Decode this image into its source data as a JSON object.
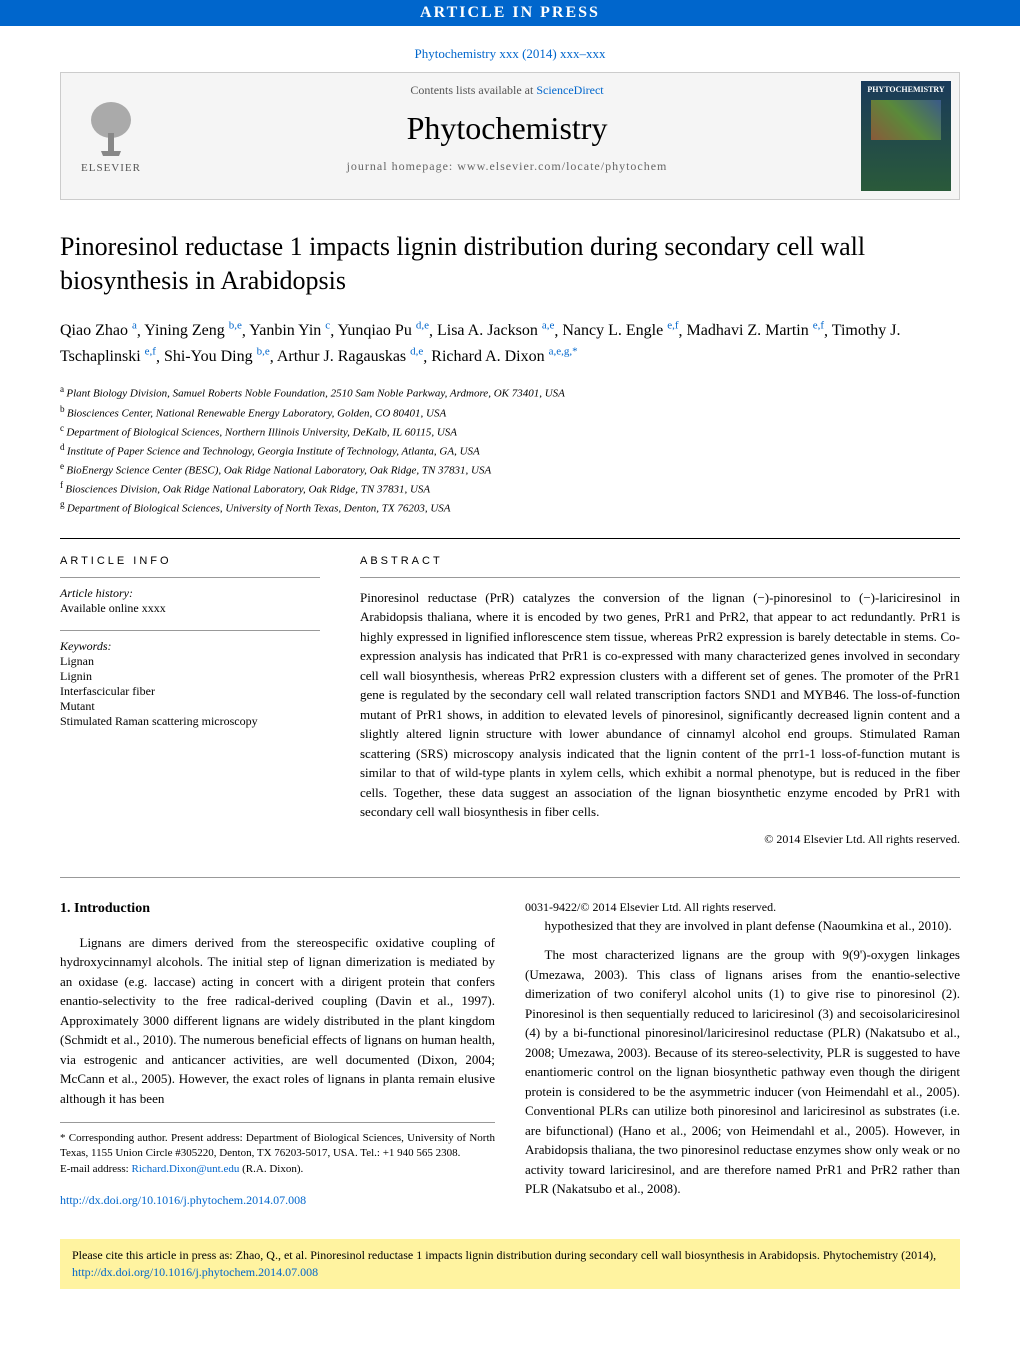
{
  "banner": {
    "text": "ARTICLE IN PRESS"
  },
  "citation_link": "Phytochemistry xxx (2014) xxx–xxx",
  "header": {
    "contents_prefix": "Contents lists available at ",
    "contents_link": "ScienceDirect",
    "journal_title": "Phytochemistry",
    "homepage_line": "journal homepage: www.elsevier.com/locate/phytochem",
    "publisher_name": "ELSEVIER",
    "cover_label": "PHYTOCHEMISTRY"
  },
  "article_title": "Pinoresinol reductase 1 impacts lignin distribution during secondary cell wall biosynthesis in Arabidopsis",
  "authors_line": "Qiao Zhao a, Yining Zeng b,e, Yanbin Yin c, Yunqiao Pu d,e, Lisa A. Jackson a,e, Nancy L. Engle e,f, Madhavi Z. Martin e,f, Timothy J. Tschaplinski e,f, Shi-You Ding b,e, Arthur J. Ragauskas d,e, Richard A. Dixon a,e,g,*",
  "authors": [
    {
      "name": "Qiao Zhao",
      "sup": "a"
    },
    {
      "name": "Yining Zeng",
      "sup": "b,e"
    },
    {
      "name": "Yanbin Yin",
      "sup": "c"
    },
    {
      "name": "Yunqiao Pu",
      "sup": "d,e"
    },
    {
      "name": "Lisa A. Jackson",
      "sup": "a,e"
    },
    {
      "name": "Nancy L. Engle",
      "sup": "e,f"
    },
    {
      "name": "Madhavi Z. Martin",
      "sup": "e,f"
    },
    {
      "name": "Timothy J. Tschaplinski",
      "sup": "e,f"
    },
    {
      "name": "Shi-You Ding",
      "sup": "b,e"
    },
    {
      "name": "Arthur J. Ragauskas",
      "sup": "d,e"
    },
    {
      "name": "Richard A. Dixon",
      "sup": "a,e,g,*"
    }
  ],
  "affiliations": [
    {
      "sup": "a",
      "text": "Plant Biology Division, Samuel Roberts Noble Foundation, 2510 Sam Noble Parkway, Ardmore, OK 73401, USA"
    },
    {
      "sup": "b",
      "text": "Biosciences Center, National Renewable Energy Laboratory, Golden, CO 80401, USA"
    },
    {
      "sup": "c",
      "text": "Department of Biological Sciences, Northern Illinois University, DeKalb, IL 60115, USA"
    },
    {
      "sup": "d",
      "text": "Institute of Paper Science and Technology, Georgia Institute of Technology, Atlanta, GA, USA"
    },
    {
      "sup": "e",
      "text": "BioEnergy Science Center (BESC), Oak Ridge National Laboratory, Oak Ridge, TN 37831, USA"
    },
    {
      "sup": "f",
      "text": "Biosciences Division, Oak Ridge National Laboratory, Oak Ridge, TN 37831, USA"
    },
    {
      "sup": "g",
      "text": "Department of Biological Sciences, University of North Texas, Denton, TX 76203, USA"
    }
  ],
  "info": {
    "heading": "ARTICLE INFO",
    "history_label": "Article history:",
    "history_text": "Available online xxxx",
    "keywords_label": "Keywords:",
    "keywords": [
      "Lignan",
      "Lignin",
      "Interfascicular fiber",
      "Mutant",
      "Stimulated Raman scattering microscopy"
    ]
  },
  "abstract": {
    "heading": "ABSTRACT",
    "text": "Pinoresinol reductase (PrR) catalyzes the conversion of the lignan (−)-pinoresinol to (−)-lariciresinol in Arabidopsis thaliana, where it is encoded by two genes, PrR1 and PrR2, that appear to act redundantly. PrR1 is highly expressed in lignified inflorescence stem tissue, whereas PrR2 expression is barely detectable in stems. Co-expression analysis has indicated that PrR1 is co-expressed with many characterized genes involved in secondary cell wall biosynthesis, whereas PrR2 expression clusters with a different set of genes. The promoter of the PrR1 gene is regulated by the secondary cell wall related transcription factors SND1 and MYB46. The loss-of-function mutant of PrR1 shows, in addition to elevated levels of pinoresinol, significantly decreased lignin content and a slightly altered lignin structure with lower abundance of cinnamyl alcohol end groups. Stimulated Raman scattering (SRS) microscopy analysis indicated that the lignin content of the prr1-1 loss-of-function mutant is similar to that of wild-type plants in xylem cells, which exhibit a normal phenotype, but is reduced in the fiber cells. Together, these data suggest an association of the lignan biosynthetic enzyme encoded by PrR1 with secondary cell wall biosynthesis in fiber cells.",
    "copyright": "© 2014 Elsevier Ltd. All rights reserved."
  },
  "intro": {
    "heading": "1. Introduction",
    "p1": "Lignans are dimers derived from the stereospecific oxidative coupling of hydroxycinnamyl alcohols. The initial step of lignan dimerization is mediated by an oxidase (e.g. laccase) acting in concert with a dirigent protein that confers enantio-selectivity to the free radical-derived coupling (Davin et al., 1997). Approximately 3000 different lignans are widely distributed in the plant kingdom (Schmidt et al., 2010). The numerous beneficial effects of lignans on human health, via estrogenic and anticancer activities, are well documented (Dixon, 2004; McCann et al., 2005). However, the exact roles of lignans in planta remain elusive although it has been",
    "p2": "hypothesized that they are involved in plant defense (Naoumkina et al., 2010).",
    "p3": "The most characterized lignans are the group with 9(9')-oxygen linkages (Umezawa, 2003). This class of lignans arises from the enantio-selective dimerization of two coniferyl alcohol units (1) to give rise to pinoresinol (2). Pinoresinol is then sequentially reduced to lariciresinol (3) and secoisolariciresinol (4) by a bi-functional pinoresinol/lariciresinol reductase (PLR) (Nakatsubo et al., 2008; Umezawa, 2003). Because of its stereo-selectivity, PLR is suggested to have enantiomeric control on the lignan biosynthetic pathway even though the dirigent protein is considered to be the asymmetric inducer (von Heimendahl et al., 2005). Conventional PLRs can utilize both pinoresinol and lariciresinol as substrates (i.e. are bifunctional) (Hano et al., 2006; von Heimendahl et al., 2005). However, in Arabidopsis thaliana, the two pinoresinol reductase enzymes show only weak or no activity toward lariciresinol, and are therefore named PrR1 and PrR2 rather than PLR (Nakatsubo et al., 2008)."
  },
  "footnote": {
    "corr": "* Corresponding author. Present address: Department of Biological Sciences, University of North Texas, 1155 Union Circle #305220, Denton, TX 76203-5017, USA. Tel.: +1 940 565 2308.",
    "email_label": "E-mail address: ",
    "email": "Richard.Dixon@unt.edu",
    "email_suffix": " (R.A. Dixon)."
  },
  "doi": {
    "url": "http://dx.doi.org/10.1016/j.phytochem.2014.07.008",
    "issn": "0031-9422/© 2014 Elsevier Ltd. All rights reserved."
  },
  "cite_banner": {
    "prefix": "Please cite this article in press as: Zhao, Q., et al. Pinoresinol reductase 1 impacts lignin distribution during secondary cell wall biosynthesis in Arabidopsis. Phytochemistry (2014), ",
    "link": "http://dx.doi.org/10.1016/j.phytochem.2014.07.008"
  },
  "colors": {
    "banner_bg": "#0066cc",
    "link": "#0066cc",
    "cite_bg": "#fff3a0",
    "border": "#cccccc"
  }
}
